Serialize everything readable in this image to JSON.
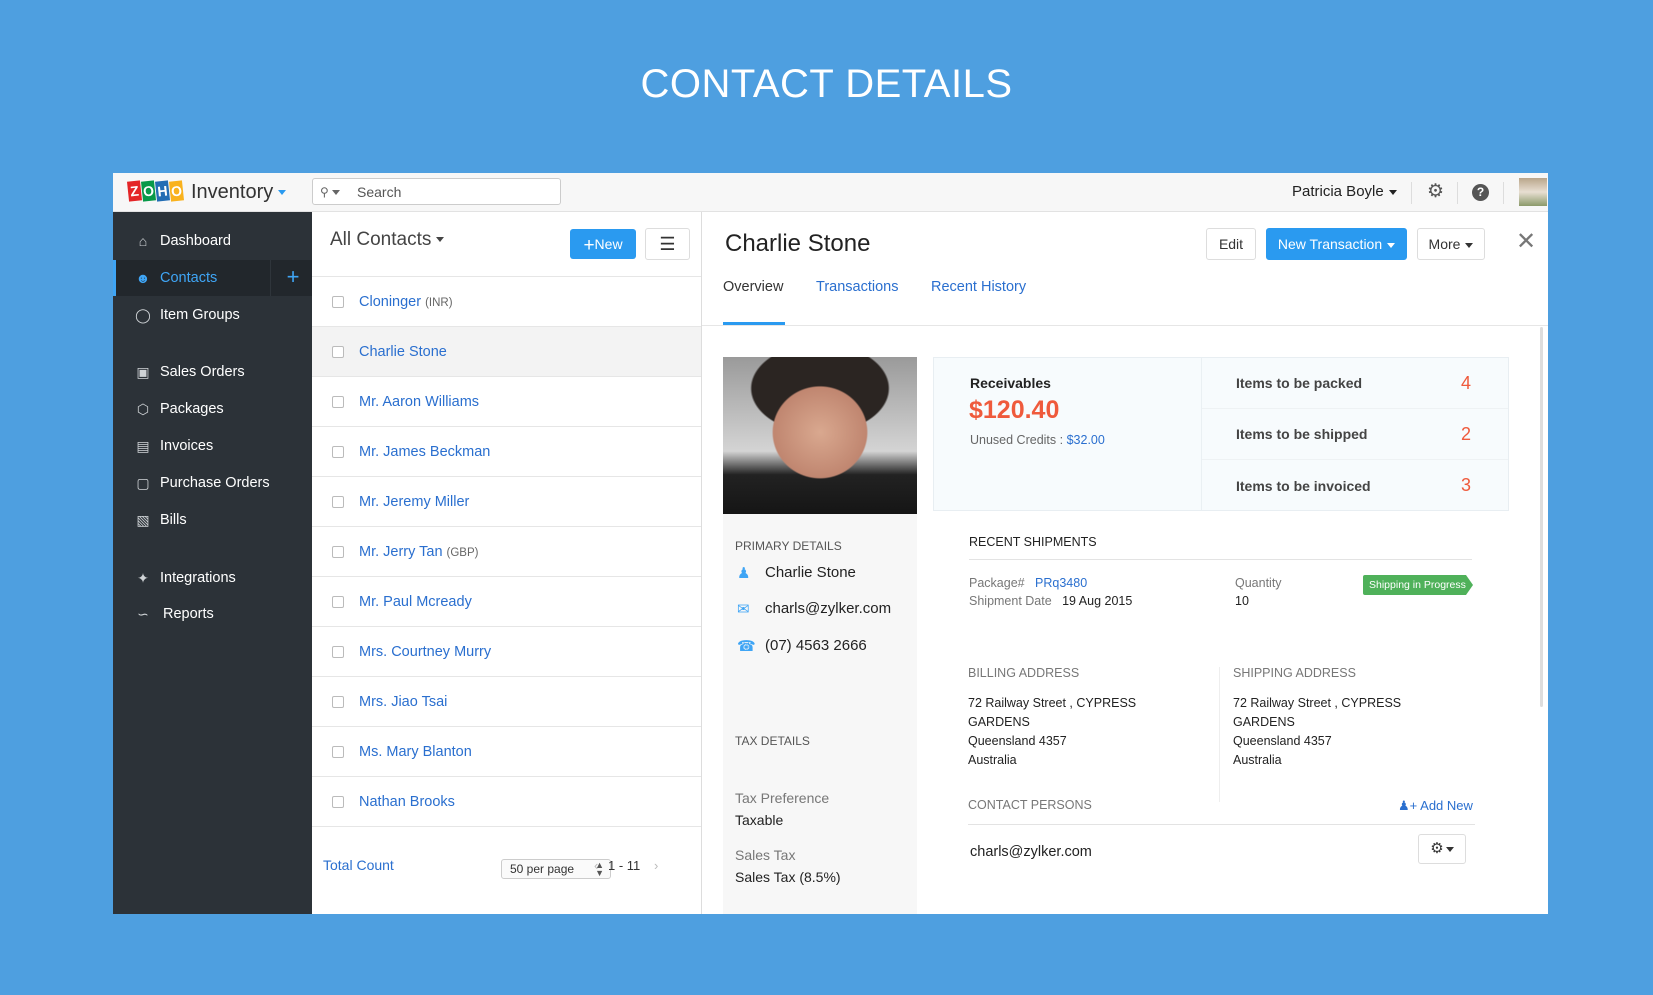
{
  "page_title": "CONTACT DETAILS",
  "topbar": {
    "logo_letters": [
      "Z",
      "O",
      "H",
      "O"
    ],
    "logo_colors": [
      "#e42527",
      "#089949",
      "#226db4",
      "#f9b21d"
    ],
    "app_name": "Inventory",
    "search_placeholder": "Search",
    "user_name": "Patricia Boyle"
  },
  "sidebar": {
    "items": [
      {
        "label": "Dashboard",
        "icon": "home-icon"
      },
      {
        "label": "Contacts",
        "icon": "user-icon",
        "active": true
      },
      {
        "label": "Item Groups",
        "icon": "basket-icon"
      },
      {
        "label": "Sales Orders",
        "icon": "cart-icon"
      },
      {
        "label": "Packages",
        "icon": "package-icon"
      },
      {
        "label": "Invoices",
        "icon": "invoice-icon"
      },
      {
        "label": "Purchase Orders",
        "icon": "bag-icon"
      },
      {
        "label": "Bills",
        "icon": "bill-icon"
      },
      {
        "label": "Integrations",
        "icon": "integrations-icon"
      },
      {
        "label": "Reports",
        "icon": "reports-icon"
      }
    ]
  },
  "list": {
    "title": "All Contacts",
    "new_label": "New",
    "contacts": [
      {
        "name": "Cloninger",
        "currency": "(INR)"
      },
      {
        "name": "Charlie Stone",
        "currency": "",
        "selected": true
      },
      {
        "name": "Mr. Aaron Williams",
        "currency": ""
      },
      {
        "name": "Mr. James Beckman",
        "currency": ""
      },
      {
        "name": "Mr. Jeremy Miller",
        "currency": ""
      },
      {
        "name": "Mr. Jerry Tan",
        "currency": "(GBP)"
      },
      {
        "name": "Mr. Paul Mcready",
        "currency": ""
      },
      {
        "name": "Mrs. Courtney Murry",
        "currency": ""
      },
      {
        "name": "Mrs. Jiao Tsai",
        "currency": ""
      },
      {
        "name": "Ms. Mary Blanton",
        "currency": ""
      },
      {
        "name": "Nathan Brooks",
        "currency": ""
      }
    ],
    "footer": {
      "total_label": "Total Count",
      "per_page": "50 per page",
      "range": "1 - 11"
    }
  },
  "detail": {
    "name": "Charlie Stone",
    "edit_label": "Edit",
    "new_transaction_label": "New Transaction",
    "more_label": "More",
    "tabs": [
      "Overview",
      "Transactions",
      "Recent History"
    ],
    "primary": {
      "heading": "PRIMARY DETAILS",
      "name": "Charlie Stone",
      "email": "charls@zylker.com",
      "phone": "(07) 4563 2666"
    },
    "tax": {
      "heading": "TAX DETAILS",
      "pref_label": "Tax Preference",
      "pref_value": "Taxable",
      "tax_label": "Sales Tax",
      "tax_value": "Sales Tax (8.5%)"
    },
    "summary": {
      "receivables_label": "Receivables",
      "receivables": "$120.40",
      "unused_label": "Unused Credits :",
      "unused": "$32.00",
      "items": [
        {
          "label": "Items to be packed",
          "count": "4"
        },
        {
          "label": "Items to be shipped",
          "count": "2"
        },
        {
          "label": "Items to be invoiced",
          "count": "3"
        }
      ]
    },
    "shipments": {
      "heading": "RECENT SHIPMENTS",
      "package_label": "Package#",
      "package": "PRq3480",
      "date_label": "Shipment Date",
      "date": "19 Aug 2015",
      "qty_label": "Quantity",
      "qty": "10",
      "status": "Shipping in Progress"
    },
    "billing": {
      "heading": "BILLING ADDRESS",
      "lines": [
        "72 Railway Street , CYPRESS",
        "GARDENS",
        "Queensland 4357",
        "Australia"
      ]
    },
    "shipping": {
      "heading": "SHIPPING ADDRESS",
      "lines": [
        "72 Railway Street , CYPRESS",
        "GARDENS",
        "Queensland 4357",
        "Australia"
      ]
    },
    "contact_persons": {
      "heading": "CONTACT PERSONS",
      "add_label": "Add New",
      "email": "charls@zylker.com"
    }
  },
  "colors": {
    "accent": "#2a9af0",
    "link": "#2a6fcf",
    "sidebar": "#2c3238",
    "amount": "#ef5a3c",
    "status": "#4fb15a",
    "background": "#4e9fe0"
  }
}
